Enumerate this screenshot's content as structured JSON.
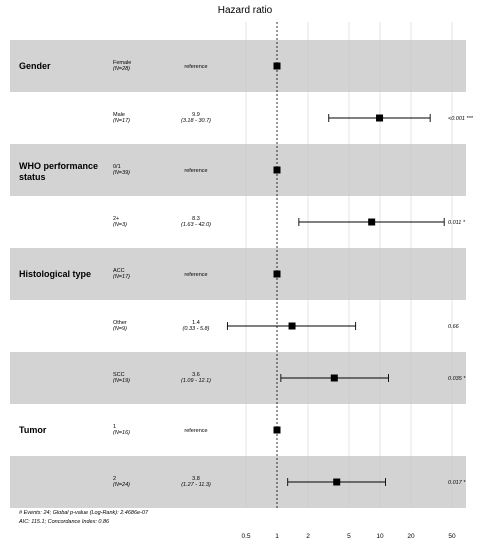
{
  "chart_data": {
    "type": "forest",
    "title": "Hazard ratio",
    "x_scale": "log",
    "xlim": [
      0.3,
      70
    ],
    "x_ticks": [
      "0.5",
      "1",
      "2",
      "5",
      "10",
      "20",
      "50"
    ],
    "x_tick_values": [
      0.5,
      1,
      2,
      5,
      10,
      20,
      50
    ],
    "reference_line": 1,
    "rows": [
      {
        "variable": "Gender",
        "level": "Female",
        "n": "(N=28)",
        "estimate": "reference",
        "ci": "",
        "p": "",
        "hr": 1,
        "lo": null,
        "hi": null,
        "shaded": true
      },
      {
        "variable": "",
        "level": "Male",
        "n": "(N=17)",
        "estimate": "9.9",
        "ci": "(3.18 - 30.7)",
        "p": "<0.001 ***",
        "hr": 9.9,
        "lo": 3.18,
        "hi": 30.7,
        "shaded": false
      },
      {
        "variable": "WHO performance status",
        "level": "0/1",
        "n": "(N=39)",
        "estimate": "reference",
        "ci": "",
        "p": "",
        "hr": 1,
        "lo": null,
        "hi": null,
        "shaded": true
      },
      {
        "variable": "",
        "level": "2+",
        "n": "(N=3)",
        "estimate": "8.3",
        "ci": "(1.63 - 42.0)",
        "p": "0.011 *",
        "hr": 8.3,
        "lo": 1.63,
        "hi": 42.0,
        "shaded": false
      },
      {
        "variable": "Histological type",
        "level": "ACC",
        "n": "(N=17)",
        "estimate": "reference",
        "ci": "",
        "p": "",
        "hr": 1,
        "lo": null,
        "hi": null,
        "shaded": true
      },
      {
        "variable": "",
        "level": "Other",
        "n": "(N=9)",
        "estimate": "1.4",
        "ci": "(0.33 - 5.8)",
        "p": "0.66",
        "hr": 1.4,
        "lo": 0.33,
        "hi": 5.8,
        "shaded": false
      },
      {
        "variable": "",
        "level": "SCC",
        "n": "(N=19)",
        "estimate": "3.6",
        "ci": "(1.09 - 12.1)",
        "p": "0.035 *",
        "hr": 3.6,
        "lo": 1.09,
        "hi": 12.1,
        "shaded": true
      },
      {
        "variable": "Tumor",
        "level": "1",
        "n": "(N=16)",
        "estimate": "reference",
        "ci": "",
        "p": "",
        "hr": 1,
        "lo": null,
        "hi": null,
        "shaded": false
      },
      {
        "variable": "",
        "level": "2",
        "n": "(N=24)",
        "estimate": "3.8",
        "ci": "(1.27 - 11.3)",
        "p": "0.017 *",
        "hr": 3.8,
        "lo": 1.27,
        "hi": 11.3,
        "shaded": true
      }
    ],
    "footnote_1": "# Events: 24; Global p-value (Log-Rank): 2.4686e-07",
    "footnote_2": "AIC: 115.1; Concordance Index: 0.86",
    "colors": {
      "shade": "#d3d3d3",
      "background": "#ffffff",
      "grid": "#c8c8c8",
      "marker": "#000000"
    }
  }
}
